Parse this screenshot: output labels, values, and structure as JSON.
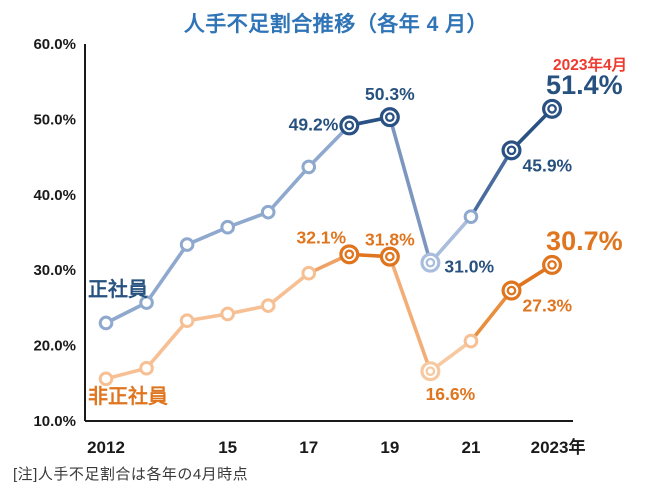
{
  "title": "人手不足割合推移（各年 4 月）",
  "title_color": "#2e74b6",
  "note": "[注]人手不足割合は各年の4月時点",
  "axis_color": "#1a1a1a",
  "annotation": {
    "text": "2023年4月",
    "color": "#ee3a2e"
  },
  "chart_data": {
    "type": "line",
    "title": "人手不足割合推移（各年 4 月）",
    "x": [
      2012,
      2013,
      2014,
      2015,
      2016,
      2017,
      2018,
      2019,
      2020,
      2021,
      2022,
      2023
    ],
    "x_ticks": [
      {
        "year": 2012,
        "label": "2012"
      },
      {
        "year": 2015,
        "label": "15"
      },
      {
        "year": 2017,
        "label": "17"
      },
      {
        "year": 2019,
        "label": "19"
      },
      {
        "year": 2021,
        "label": "21"
      },
      {
        "year": 2023,
        "label": "2023年"
      }
    ],
    "ylim": [
      10,
      60
    ],
    "y_ticks": [
      {
        "value": 60,
        "label": "60.0%"
      },
      {
        "value": 50,
        "label": "50.0%"
      },
      {
        "value": 40,
        "label": "40.0%"
      },
      {
        "value": 30,
        "label": "30.0%"
      },
      {
        "value": 20,
        "label": "20.0%"
      },
      {
        "value": 10,
        "label": "10.0%"
      }
    ],
    "grid": false,
    "legend_position": "on-chart",
    "series": [
      {
        "name": "正社員",
        "values": [
          23.0,
          25.7,
          33.4,
          35.7,
          37.7,
          43.7,
          49.2,
          50.3,
          31.0,
          37.1,
          45.9,
          51.4
        ],
        "color_dark": "#2a5183",
        "color_light": "#8fa9ce",
        "color_pale": "#a9bedc",
        "label_color": "#27517f",
        "segment_colors": [
          "#8fa9ce",
          "#8fa9ce",
          "#8fa9ce",
          "#8fa9ce",
          "#8fa9ce",
          "#8fa9ce",
          "#2a5183",
          "#7d96c0",
          "#a9bedc",
          "#4a6b9d",
          "#2a5183"
        ],
        "dark_marker_years": [
          2018,
          2019,
          2022,
          2023
        ],
        "pale_marker_years": [
          2020
        ]
      },
      {
        "name": "非正社員",
        "values": [
          15.6,
          17.0,
          23.3,
          24.2,
          25.3,
          29.6,
          32.1,
          31.8,
          16.6,
          20.6,
          27.3,
          30.7
        ],
        "color_dark": "#e0751f",
        "color_light": "#f6c094",
        "color_pale": "#f7c9a0",
        "label_color": "#e0751f",
        "segment_colors": [
          "#f6c094",
          "#f6c094",
          "#f6c094",
          "#f6c094",
          "#f6c094",
          "#f0a266",
          "#e0751f",
          "#f3ad76",
          "#f7c9a0",
          "#e98e3c",
          "#e0751f"
        ],
        "dark_marker_years": [
          2018,
          2019,
          2022,
          2023
        ],
        "pale_marker_years": [
          2020
        ]
      }
    ],
    "point_labels": [
      {
        "series": 0,
        "year": 2018,
        "text": "49.2%",
        "pos": "left"
      },
      {
        "series": 0,
        "year": 2019,
        "text": "50.3%",
        "pos": "above"
      },
      {
        "series": 0,
        "year": 2020,
        "text": "31.0%",
        "pos": "right"
      },
      {
        "series": 0,
        "year": 2022,
        "text": "45.9%",
        "pos": "below-right"
      },
      {
        "series": 0,
        "year": 2023,
        "text": "51.4%",
        "pos": "big-above"
      },
      {
        "series": 1,
        "year": 2018,
        "text": "32.1%",
        "pos": "above-left"
      },
      {
        "series": 1,
        "year": 2019,
        "text": "31.8%",
        "pos": "above-close"
      },
      {
        "series": 1,
        "year": 2020,
        "text": "16.6%",
        "pos": "below"
      },
      {
        "series": 1,
        "year": 2022,
        "text": "27.3%",
        "pos": "below-right"
      },
      {
        "series": 1,
        "year": 2023,
        "text": "30.7%",
        "pos": "big-above"
      }
    ]
  }
}
